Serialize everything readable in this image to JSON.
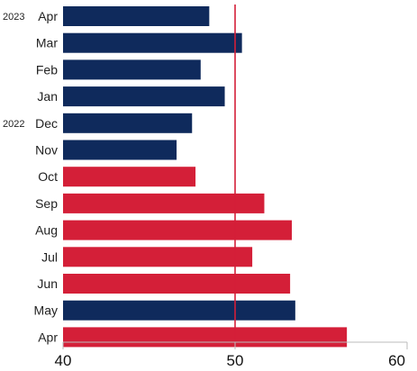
{
  "chart_data": {
    "type": "bar",
    "orientation": "horizontal",
    "categories": [
      "Apr",
      "Mar",
      "Feb",
      "Jan",
      "Dec",
      "Nov",
      "Oct",
      "Sep",
      "Aug",
      "Jul",
      "Jun",
      "May",
      "Apr"
    ],
    "year_labels": [
      {
        "category_index": 0,
        "text": "2023"
      },
      {
        "category_index": 4,
        "text": "2022"
      }
    ],
    "values": [
      48.5,
      50.4,
      48.0,
      49.4,
      47.5,
      46.6,
      47.7,
      51.7,
      53.3,
      51.0,
      53.2,
      53.5,
      56.5
    ],
    "bar_colors": [
      "#0f2a5c",
      "#0f2a5c",
      "#0f2a5c",
      "#0f2a5c",
      "#0f2a5c",
      "#0f2a5c",
      "#d41f38",
      "#d41f38",
      "#d41f38",
      "#d41f38",
      "#d41f38",
      "#0f2a5c",
      "#d41f38"
    ],
    "reference_line": {
      "value": 50,
      "color": "#d41f38"
    },
    "xlim": [
      40,
      60
    ],
    "xticks": [
      "40",
      "50",
      "60"
    ],
    "grid": false,
    "title": "",
    "xlabel": "",
    "ylabel": ""
  }
}
